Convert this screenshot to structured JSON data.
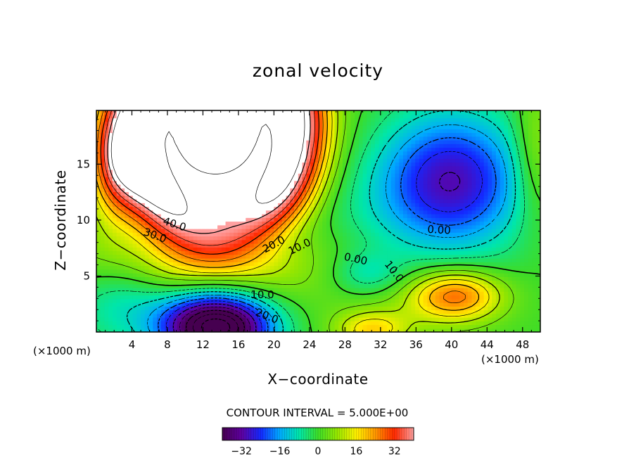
{
  "chart_data": {
    "type": "heatmap",
    "title": "zonal velocity",
    "xlabel": "X−coordinate",
    "ylabel": "Z−coordinate",
    "x_unit_left": "(×1000 m)",
    "x_unit_right": "(×1000 m)",
    "xlim": [
      0,
      50
    ],
    "ylim": [
      0,
      19.8
    ],
    "x_ticks": [
      4,
      8,
      12,
      16,
      20,
      24,
      28,
      32,
      36,
      40,
      44,
      48
    ],
    "y_ticks": [
      5,
      10,
      15
    ],
    "contour_interval_text": "CONTOUR INTERVAL = 5.000E+00",
    "contour_interval": 5.0,
    "colorbar": {
      "range": [
        -40,
        40
      ],
      "ticks": [
        -32,
        -16,
        0,
        16,
        32
      ],
      "tick_labels": [
        "−32",
        "−16",
        "0",
        "16",
        "32"
      ]
    },
    "contour_labels": [
      {
        "text": "40.0",
        "x": 8.8,
        "z": 9.6,
        "rotation": 18
      },
      {
        "text": "30.0",
        "x": 6.6,
        "z": 8.6,
        "rotation": 20
      },
      {
        "text": "20.0",
        "x": 20.0,
        "z": 7.8,
        "rotation": -28
      },
      {
        "text": "10.0",
        "x": 22.9,
        "z": 7.6,
        "rotation": -26
      },
      {
        "text": "0.00",
        "x": 29.2,
        "z": 6.5,
        "rotation": 12
      },
      {
        "text": "10.0",
        "x": 33.5,
        "z": 5.4,
        "rotation": 52
      },
      {
        "text": "0.00",
        "x": 38.6,
        "z": 9.1,
        "rotation": 3
      },
      {
        "text": "10.0",
        "x": 18.7,
        "z": 3.3,
        "rotation": 0
      },
      {
        "text": "20.0",
        "x": 19.2,
        "z": 1.4,
        "rotation": 22
      }
    ],
    "field_features": [
      {
        "x": 13.5,
        "z": 18.5,
        "value": 55,
        "sx": 9,
        "sz": 9
      },
      {
        "x": 14.5,
        "z": 9,
        "value": -15,
        "sx": 8,
        "sz": 3
      },
      {
        "x": 13.5,
        "z": 0.5,
        "value": -55,
        "sx": 6,
        "sz": 3
      },
      {
        "x": 3,
        "z": 3,
        "value": -10,
        "sx": 6,
        "sz": 4
      },
      {
        "x": 40,
        "z": 13.5,
        "value": -30,
        "sx": 8,
        "sz": 6
      },
      {
        "x": 40.5,
        "z": 3.3,
        "value": 25,
        "sx": 5,
        "sz": 2.2
      },
      {
        "x": 31,
        "z": 0.2,
        "value": 16,
        "sx": 4,
        "sz": 1.6
      },
      {
        "x": 30.5,
        "z": 5.2,
        "value": -9,
        "sx": 4,
        "sz": 2
      },
      {
        "x": 49.5,
        "z": 16,
        "value": 10,
        "sx": 2.5,
        "sz": 6
      }
    ]
  }
}
